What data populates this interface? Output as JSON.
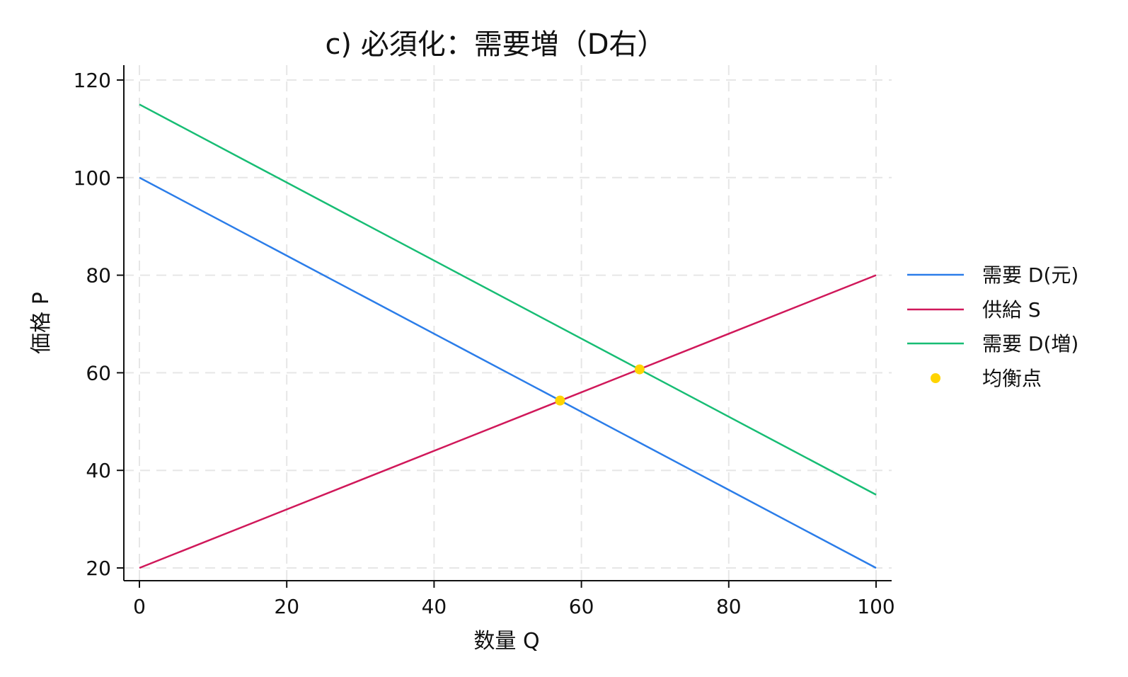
{
  "chart_data": {
    "type": "line",
    "title": "c) 必須化：需要増（D右）",
    "xlabel": "数量 Q",
    "ylabel": "価格 P",
    "xlim": [
      0,
      100
    ],
    "ylim": [
      20,
      120
    ],
    "x_ticks": [
      "0",
      "20",
      "40",
      "60",
      "80",
      "100"
    ],
    "y_ticks": [
      "20",
      "40",
      "60",
      "80",
      "100",
      "120"
    ],
    "grid": true,
    "legend_position": "right",
    "series": [
      {
        "name": "需要 D(元)",
        "color": "#2b7de9",
        "points": [
          [
            0,
            100
          ],
          [
            100,
            20
          ]
        ]
      },
      {
        "name": "供給 S",
        "color": "#d0185a",
        "points": [
          [
            0,
            20
          ],
          [
            100,
            80
          ]
        ]
      },
      {
        "name": "需要 D(増)",
        "color": "#17bd74",
        "points": [
          [
            0,
            115
          ],
          [
            100,
            35
          ]
        ]
      }
    ],
    "equilibrium": {
      "name": "均衡点",
      "color": "#ffd400",
      "points": [
        [
          57.1,
          54.3
        ],
        [
          67.9,
          60.7
        ]
      ]
    }
  }
}
